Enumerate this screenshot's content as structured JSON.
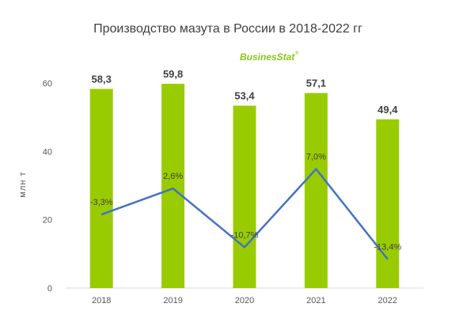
{
  "chart_data": {
    "type": "bar",
    "title": "Производство мазута в России в 2018-2022 гг",
    "ylabel": "млн т",
    "xlabel": "",
    "ylim": [
      0,
      60
    ],
    "yticks": [
      "0",
      "20",
      "40",
      "60"
    ],
    "grid": false,
    "categories": [
      "2018",
      "2019",
      "2020",
      "2021",
      "2022"
    ],
    "series": [
      {
        "type": "bar",
        "values": [
          58.3,
          59.8,
          53.4,
          57.1,
          49.4
        ],
        "labels": [
          "58,3",
          "59,8",
          "53,4",
          "57,1",
          "49,4"
        ],
        "color": "#99cc00"
      },
      {
        "type": "line",
        "values": [
          -3.3,
          2.6,
          -10.7,
          7.0,
          -13.4
        ],
        "labels": [
          "-3,3%",
          "2,6%",
          "-10,7%",
          "7,0%",
          "-13,4%"
        ],
        "color": "#4472c4"
      }
    ]
  },
  "logo": {
    "text": "BusinesStat",
    "mark": "®"
  }
}
